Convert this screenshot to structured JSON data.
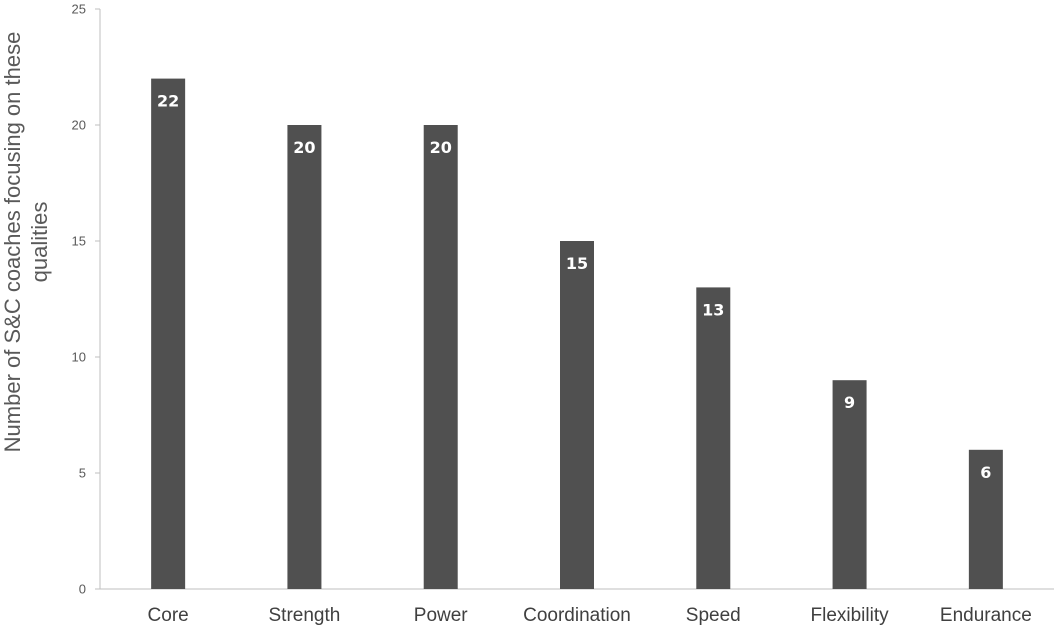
{
  "chart_data": {
    "type": "bar",
    "categories": [
      "Core",
      "Strength",
      "Power",
      "Coordination",
      "Speed",
      "Flexibility",
      "Endurance"
    ],
    "values": [
      22,
      20,
      20,
      15,
      13,
      9,
      6
    ],
    "data_labels": [
      "22",
      "20",
      "20",
      "15",
      "13",
      "9",
      "6"
    ],
    "title": "",
    "xlabel": "",
    "ylabel_lines": [
      "Number of S&C coaches focusing on these",
      "qualities"
    ],
    "ylim": [
      0,
      25
    ],
    "yticks": [
      0,
      5,
      10,
      15,
      20,
      25
    ],
    "ytick_labels": [
      "0",
      "5",
      "10",
      "15",
      "20",
      "25"
    ],
    "grid": false,
    "legend": "none",
    "bar_color": "#505050",
    "axis_color": "#bfbfbf"
  }
}
